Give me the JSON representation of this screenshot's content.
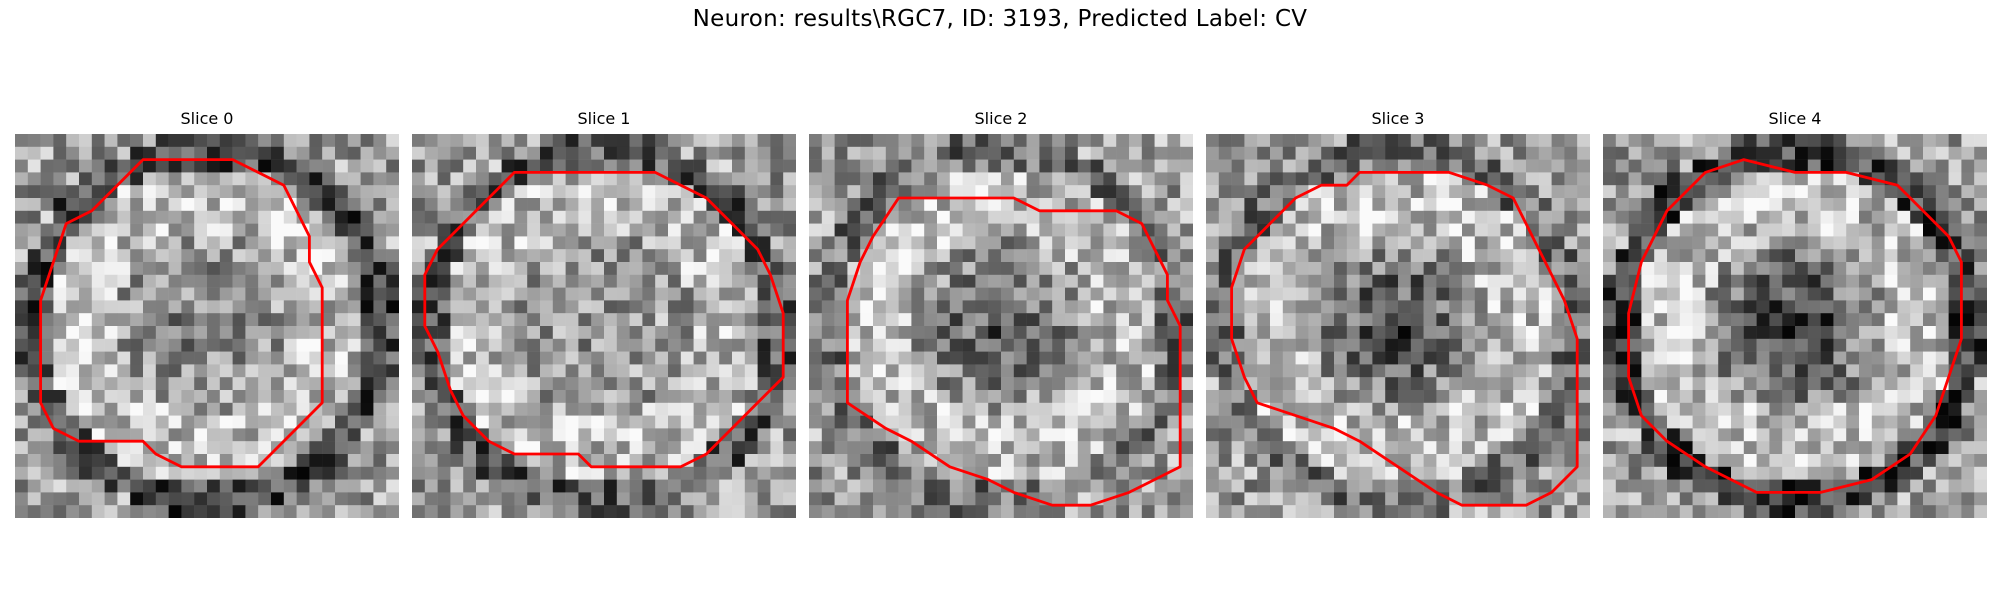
{
  "figure": {
    "title": "Neuron: results\\RGC7, ID: 3193, Predicted Label: CV",
    "contour_color": "#ff0000"
  },
  "slices": [
    {
      "label": "Slice 0",
      "seed": 11,
      "center_dark": 0.15,
      "ring_dark": 0.55
    },
    {
      "label": "Slice 1",
      "seed": 23,
      "center_dark": 0.05,
      "ring_dark": 0.45
    },
    {
      "label": "Slice 2",
      "seed": 37,
      "center_dark": 0.35,
      "ring_dark": 0.3
    },
    {
      "label": "Slice 3",
      "seed": 53,
      "center_dark": 0.45,
      "ring_dark": 0.3
    },
    {
      "label": "Slice 4",
      "seed": 71,
      "center_dark": 0.55,
      "ring_dark": 0.6
    }
  ]
}
